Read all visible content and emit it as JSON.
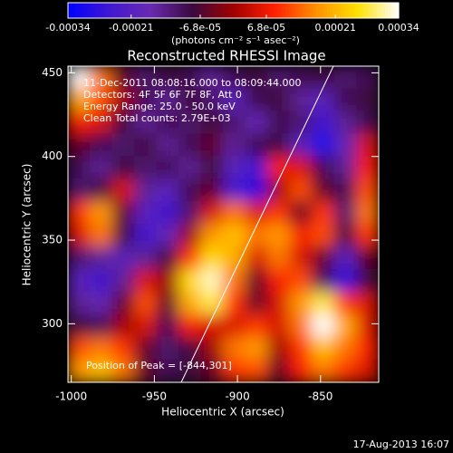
{
  "chart_data": {
    "type": "heatmap",
    "title": "Reconstructed RHESSI Image",
    "x_label": "Heliocentric X (arcsec)",
    "y_label": "Heliocentric Y (arcsec)",
    "colorbar_label": "(photons cm⁻² s⁻¹ asec⁻²)",
    "annotations": [
      "11-Dec-2011 08:08:16.000 to 08:09:44.000",
      "Detectors: 4F 5F 6F 7F 8F, Att 0",
      "Energy Range: 25.0 - 50.0 keV",
      "Clean     Total counts: 2.79E+03"
    ],
    "peak_label": "Position of Peak = [-844,301]",
    "footer": "17-Aug-2013 16:07",
    "xlim": [
      -1002,
      -815
    ],
    "ylim": [
      265,
      454
    ],
    "xticks": [
      -1000,
      -950,
      -900,
      -850
    ],
    "yticks": [
      300,
      350,
      400,
      450
    ],
    "clim": [
      -0.00034,
      0.00034
    ],
    "cticks": [
      -0.00034,
      -0.00021,
      {
        "value": -6.8e-05,
        "label": "-6.8e-05"
      },
      {
        "value": 6.8e-05,
        "label": "6.8e-05"
      },
      0.00021,
      0.00034
    ],
    "colormap": [
      "#0000ff",
      "#4018d0",
      "#6a2a b0",
      "#3a0a40",
      "#a00000",
      "#ff2000",
      "#ff9000",
      "#ffe000",
      "#ffffff"
    ],
    "z": [
      [
        0.00034,
        0.00015,
        -5e-05,
        -0.00012,
        -8e-05,
        -0.0001,
        -0.00015,
        -0.0001,
        -8e-05,
        -0.00012,
        -0.0001,
        -8e-05,
        -0.00012,
        -0.0001
      ],
      [
        0.0002,
        0.00012,
        0,
        -0.0001,
        -0.00015,
        -8e-05,
        -0.00012,
        -0.0002,
        -0.0001,
        -8e-05,
        -0.00015,
        -0.0002,
        -0.0001,
        -8e-05
      ],
      [
        8e-05,
        5e-05,
        -8e-05,
        -0.00015,
        -0.0001,
        -0.00012,
        -8e-05,
        -0.00012,
        -0.00018,
        -0.0001,
        -0.00012,
        -0.00025,
        -0.00015,
        -0.0001
      ],
      [
        -5e-05,
        -0.0001,
        -0.00012,
        -8e-05,
        -0.00015,
        -0.0001,
        -5e-05,
        -0.00015,
        -0.0001,
        -8e-05,
        -0.0002,
        -0.0003,
        -0.00018,
        5e-05
      ],
      [
        -0.0001,
        -0.00015,
        -8e-05,
        -0.00012,
        -0.0001,
        -0.00015,
        -8e-05,
        -0.0002,
        -0.00025,
        8e-05,
        5e-05,
        -0.0001,
        -0.00015,
        8e-05
      ],
      [
        -0.00012,
        -8e-05,
        5e-05,
        -0.00015,
        -0.0002,
        -0.0001,
        -5e-05,
        -0.00025,
        -0.00028,
        0,
        0.00012,
        -5e-05,
        -0.0001,
        0.00012
      ],
      [
        0.0001,
        0.00018,
        -5e-05,
        -0.0002,
        -0.00025,
        -0.00012,
        5e-05,
        0.00015,
        5e-05,
        0.0001,
        -5e-05,
        0.0001,
        -0.00012,
        0.00015
      ],
      [
        5e-05,
        0.00015,
        -8e-05,
        -0.00025,
        -0.00018,
        0,
        0.00018,
        0.00022,
        0.00015,
        0.00018,
        8e-05,
        0.00012,
        -8e-05,
        0.0001
      ],
      [
        -0.00012,
        -0.00015,
        -0.0002,
        -0.00015,
        -8e-05,
        0.0001,
        0.00025,
        0.0002,
        5e-05,
        0.00015,
        5e-05,
        -5e-05,
        -0.0002,
        -5e-05
      ],
      [
        -0.0002,
        -0.00025,
        -0.00015,
        5e-05,
        0,
        0.00025,
        0.00032,
        0.00015,
        -5e-05,
        8e-05,
        0.00012,
        -0.0001,
        -0.00028,
        -8e-05
      ],
      [
        -0.00015,
        -0.00018,
        -5e-05,
        0.00012,
        -5e-05,
        0.0002,
        0.00028,
        0.0001,
        -5e-05,
        5e-05,
        0.00018,
        0.00028,
        0.0001,
        5e-05
      ],
      [
        -8e-05,
        -0.0001,
        0,
        5e-05,
        -0.0001,
        8e-05,
        5e-05,
        5e-05,
        0.0001,
        5e-05,
        0.00015,
        0.00034,
        0.0002,
        5e-05
      ],
      [
        0.00012,
        0.00015,
        0.0001,
        -5e-05,
        -0.00012,
        -8e-05,
        0,
        0.00015,
        0.00018,
        0,
        0.0001,
        0.00022,
        0.00015,
        8e-05
      ],
      [
        0.00018,
        0.00022,
        0.00015,
        -5e-05,
        -0.0001,
        -8e-05,
        -5e-05,
        0.0001,
        0.00012,
        -5e-05,
        8e-05,
        0.00015,
        0.0001,
        5e-05
      ]
    ]
  }
}
